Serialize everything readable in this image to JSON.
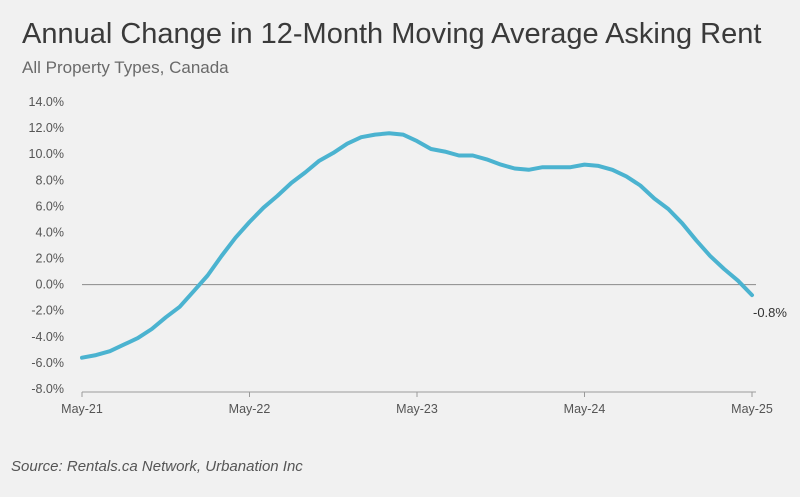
{
  "chart_data": {
    "type": "line",
    "title": "Annual Change in 12-Month Moving Average Asking Rent",
    "subtitle": "All Property Types, Canada",
    "source": "Source: Rentals.ca Network, Urbanation Inc",
    "xlabel": "",
    "ylabel": "",
    "ylim": [
      -8,
      14
    ],
    "yticks": [
      14,
      12,
      10,
      8,
      6,
      4,
      2,
      0,
      -2,
      -4,
      -6,
      -8
    ],
    "ytick_labels": [
      "14.0%",
      "12.0%",
      "10.0%",
      "8.0%",
      "6.0%",
      "4.0%",
      "2.0%",
      "0.0%",
      "-2.0%",
      "-4.0%",
      "-6.0%",
      "-8.0%"
    ],
    "xtick_labels": [
      "May-21",
      "May-22",
      "May-23",
      "May-24",
      "May-25"
    ],
    "end_label": "-0.8%",
    "line_color": "#4bb3d0",
    "series": [
      {
        "name": "Annual change in 12-month moving average asking rent",
        "values": [
          -5.6,
          -5.4,
          -5.1,
          -4.6,
          -4.1,
          -3.4,
          -2.5,
          -1.7,
          -0.5,
          0.7,
          2.2,
          3.6,
          4.8,
          5.9,
          6.8,
          7.8,
          8.6,
          9.5,
          10.1,
          10.8,
          11.3,
          11.5,
          11.6,
          11.5,
          11.0,
          10.4,
          10.2,
          9.9,
          9.9,
          9.6,
          9.2,
          8.9,
          8.8,
          9.0,
          9.0,
          9.0,
          9.2,
          9.1,
          8.8,
          8.3,
          7.6,
          6.6,
          5.8,
          4.7,
          3.4,
          2.2,
          1.2,
          0.3,
          -0.8
        ]
      }
    ]
  }
}
